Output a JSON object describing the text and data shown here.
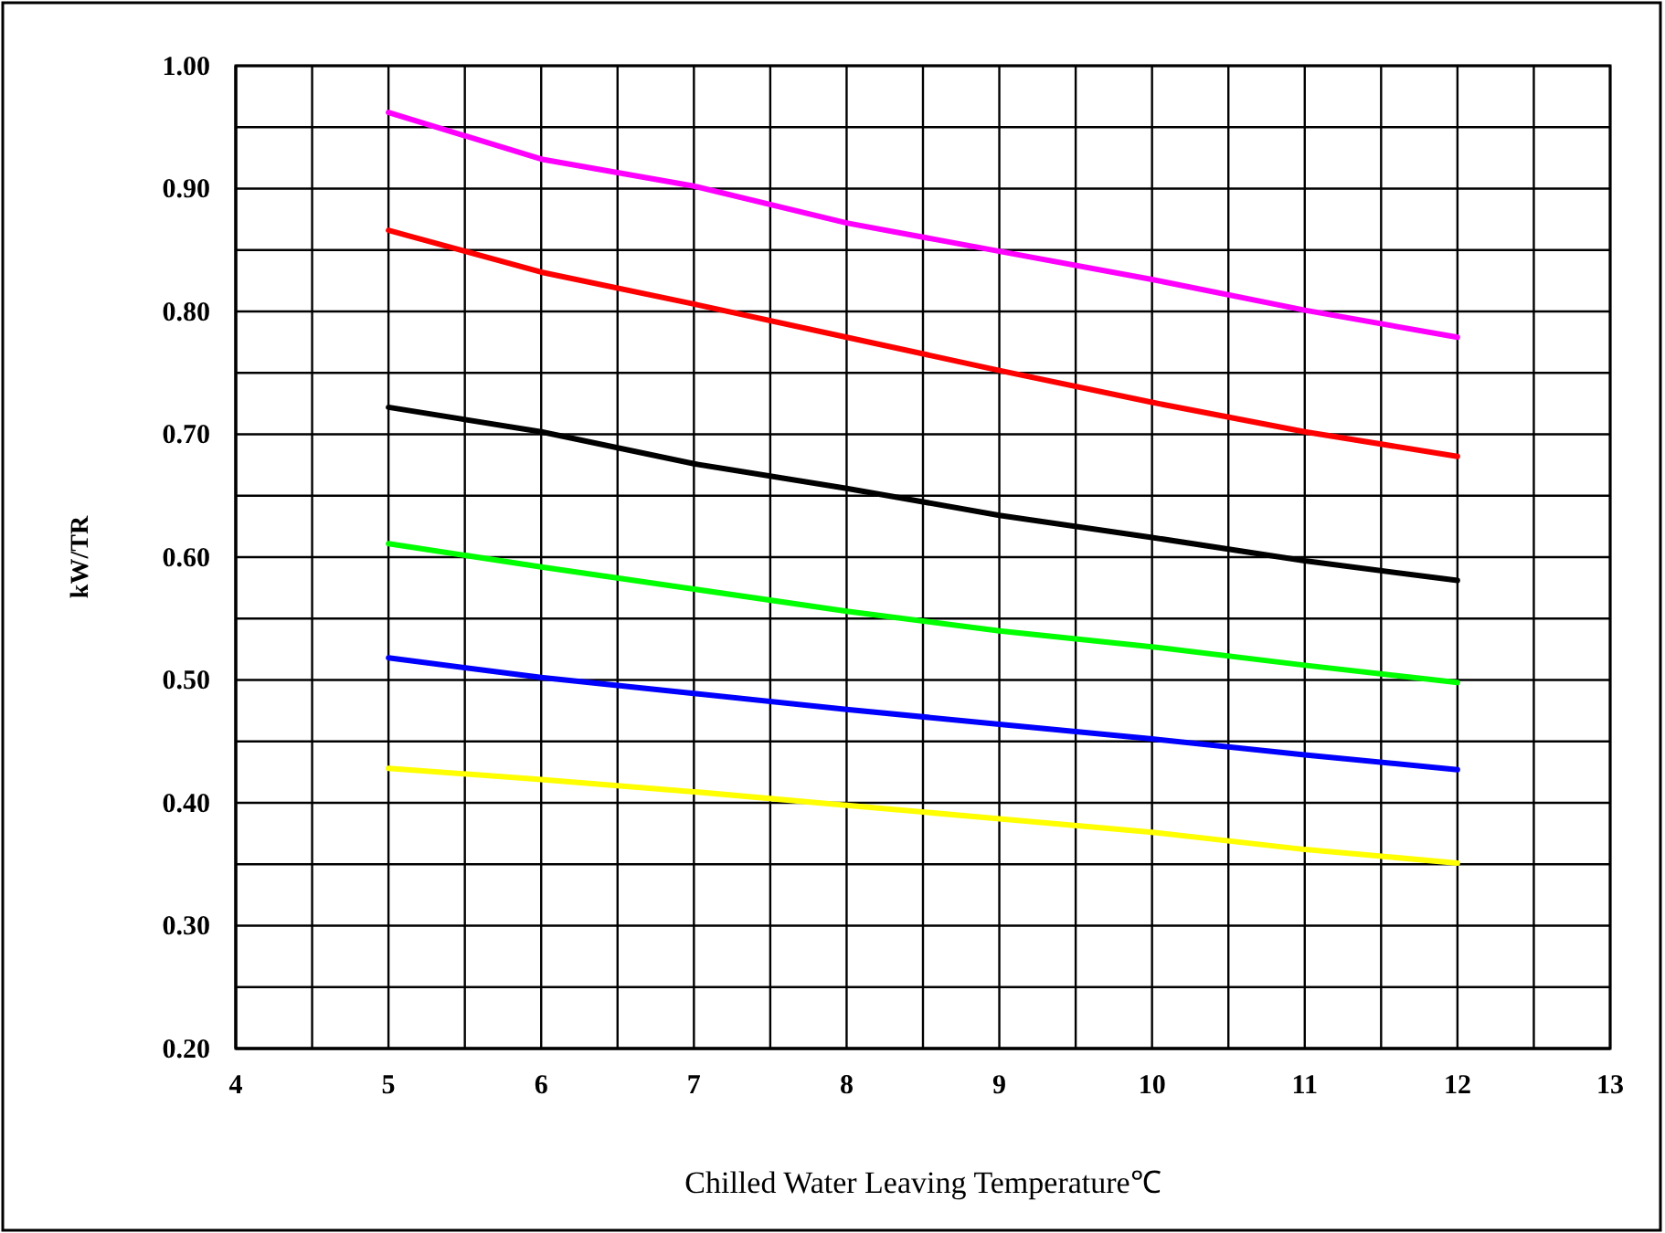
{
  "chart_data": {
    "type": "line",
    "xlabel": "Chilled Water Leaving Temperature℃",
    "ylabel": "kW/TR",
    "x": [
      5,
      6,
      7,
      8,
      9,
      10,
      11,
      12
    ],
    "series": [
      {
        "color": "#ff00ff",
        "values": [
          0.962,
          0.924,
          0.902,
          0.872,
          0.849,
          0.826,
          0.801,
          0.779
        ]
      },
      {
        "color": "#ff0000",
        "values": [
          0.866,
          0.832,
          0.806,
          0.779,
          0.752,
          0.726,
          0.702,
          0.682
        ]
      },
      {
        "color": "#000000",
        "values": [
          0.722,
          0.702,
          0.676,
          0.656,
          0.634,
          0.616,
          0.597,
          0.581
        ]
      },
      {
        "color": "#00ff00",
        "values": [
          0.611,
          0.592,
          0.574,
          0.556,
          0.54,
          0.527,
          0.512,
          0.498
        ]
      },
      {
        "color": "#0000ff",
        "values": [
          0.518,
          0.502,
          0.489,
          0.476,
          0.464,
          0.452,
          0.439,
          0.427
        ]
      },
      {
        "color": "#ffff00",
        "values": [
          0.428,
          0.419,
          0.409,
          0.398,
          0.387,
          0.376,
          0.362,
          0.351
        ]
      }
    ],
    "xlim": [
      4,
      13
    ],
    "xticks": [
      4,
      {
        "value": 4.5,
        "label": null
      },
      5,
      {
        "value": 5.5,
        "label": null
      },
      6,
      {
        "value": 6.5,
        "label": null
      },
      7,
      {
        "value": 7.5,
        "label": null
      },
      8,
      {
        "value": 8.5,
        "label": null
      },
      9,
      {
        "value": 9.5,
        "label": null
      },
      10,
      {
        "value": 10.5,
        "label": null
      },
      11,
      {
        "value": 11.5,
        "label": null
      },
      12,
      {
        "value": 12.5,
        "label": null
      },
      13
    ],
    "ylim": [
      0.2,
      1.0
    ],
    "yticks": [
      {
        "value": 0.2,
        "label": "0.20"
      },
      {
        "value": 0.25,
        "label": null
      },
      {
        "value": 0.3,
        "label": "0.30"
      },
      {
        "value": 0.35,
        "label": null
      },
      {
        "value": 0.4,
        "label": "0.40"
      },
      {
        "value": 0.45,
        "label": null
      },
      {
        "value": 0.5,
        "label": "0.50"
      },
      {
        "value": 0.55,
        "label": null
      },
      {
        "value": 0.6,
        "label": "0.60"
      },
      {
        "value": 0.65,
        "label": null
      },
      {
        "value": 0.7,
        "label": "0.70"
      },
      {
        "value": 0.75,
        "label": null
      },
      {
        "value": 0.8,
        "label": "0.80"
      },
      {
        "value": 0.85,
        "label": null
      },
      {
        "value": 0.9,
        "label": "0.90"
      },
      {
        "value": 0.95,
        "label": null
      },
      {
        "value": 1.0,
        "label": "1.00"
      }
    ],
    "grid": true,
    "marker": "none",
    "line_style": "solid"
  }
}
